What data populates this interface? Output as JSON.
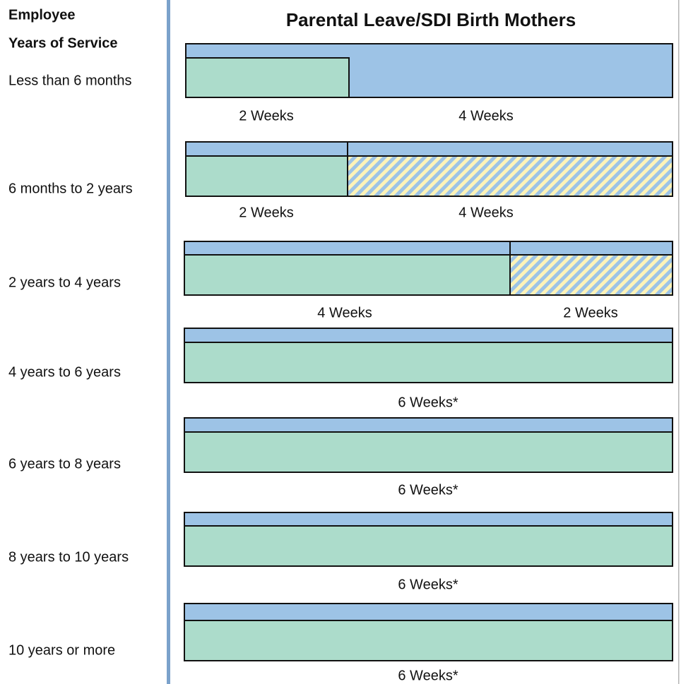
{
  "header": {
    "line1": "Employee",
    "line2": "Years of Service"
  },
  "title": "Parental Leave/SDI Birth Mothers",
  "rows": [
    {
      "label": "Less than 6 months",
      "segments": [
        "2 Weeks",
        "4 Weeks"
      ]
    },
    {
      "label": "6 months to 2 years",
      "segments": [
        "2 Weeks",
        "4 Weeks"
      ]
    },
    {
      "label": "2 years to 4 years",
      "segments": [
        "4 Weeks",
        "2 Weeks"
      ]
    },
    {
      "label": "4 years to 6 years",
      "segments": [
        "6 Weeks*"
      ]
    },
    {
      "label": "6 years to 8 years",
      "segments": [
        "6 Weeks*"
      ]
    },
    {
      "label": "8 years to 10 years",
      "segments": [
        "6 Weeks*"
      ]
    },
    {
      "label": "10 years or more",
      "segments": [
        "6 Weeks*"
      ]
    }
  ]
}
